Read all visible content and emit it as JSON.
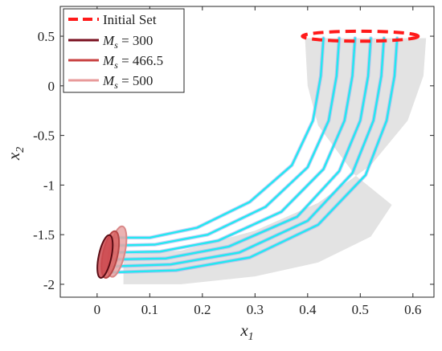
{
  "chart_data": {
    "type": "line",
    "xlabel": "x1",
    "ylabel": "x2",
    "xlim": [
      -0.07,
      0.64
    ],
    "ylim": [
      -2.13,
      0.8
    ],
    "x_ticks": [
      0,
      0.1,
      0.2,
      0.3,
      0.4,
      0.5,
      0.6
    ],
    "y_ticks": [
      0.5,
      0,
      -0.5,
      -1,
      -1.5,
      -2
    ],
    "x_tick_labels": [
      "0",
      "0.1",
      "0.2",
      "0.3",
      "0.4",
      "0.5",
      "0.6"
    ],
    "y_tick_labels": [
      "0.5",
      "0",
      "-0.5",
      "-1",
      "-1.5",
      "-2"
    ],
    "grid": false,
    "legend_position": "top-left",
    "legend": [
      {
        "label": "Initial Set",
        "color": "#ff1a1a",
        "style": "dashed"
      },
      {
        "label": "M_s = 300",
        "color": "#7a1020",
        "style": "solid"
      },
      {
        "label": "M_s = 466.5",
        "color": "#c84040",
        "style": "solid"
      },
      {
        "label": "M_s = 500",
        "color": "#e89a9a",
        "style": "solid"
      }
    ],
    "initial_set": {
      "center": [
        0.5,
        0.5
      ],
      "semi_axes": [
        0.11,
        0.05
      ],
      "color": "#ff1a1a"
    },
    "reach_tube": {
      "color": "#e3e3e3",
      "outer_edge": [
        [
          0.625,
          0.48
        ],
        [
          0.62,
          0.1
        ],
        [
          0.59,
          -0.35
        ],
        [
          0.52,
          -0.8
        ],
        [
          0.42,
          -1.18
        ],
        [
          0.3,
          -1.46
        ],
        [
          0.16,
          -1.66
        ],
        [
          0.05,
          -1.7
        ]
      ],
      "inner_edge": [
        [
          0.05,
          -2.0
        ],
        [
          0.16,
          -2.0
        ],
        [
          0.3,
          -1.92
        ],
        [
          0.42,
          -1.78
        ],
        [
          0.52,
          -1.52
        ],
        [
          0.56,
          -1.2
        ],
        [
          0.49,
          -0.9
        ],
        [
          0.42,
          -0.4
        ],
        [
          0.4,
          0.0
        ],
        [
          0.395,
          0.48
        ]
      ]
    },
    "trajectory_color": "#22e8f0",
    "trajectory_shadow_color": "#9aa8f2",
    "trajectories": [
      {
        "x": [
          0.43,
          0.425,
          0.41,
          0.37,
          0.29,
          0.19,
          0.1,
          0.03
        ],
        "y": [
          0.48,
          0.1,
          -0.35,
          -0.8,
          -1.17,
          -1.43,
          -1.53,
          -1.53
        ]
      },
      {
        "x": [
          0.46,
          0.455,
          0.44,
          0.4,
          0.32,
          0.21,
          0.11,
          0.03
        ],
        "y": [
          0.48,
          0.1,
          -0.35,
          -0.82,
          -1.22,
          -1.5,
          -1.6,
          -1.61
        ]
      },
      {
        "x": [
          0.49,
          0.485,
          0.47,
          0.43,
          0.35,
          0.23,
          0.12,
          0.03
        ],
        "y": [
          0.48,
          0.1,
          -0.35,
          -0.84,
          -1.27,
          -1.56,
          -1.67,
          -1.68
        ]
      },
      {
        "x": [
          0.52,
          0.515,
          0.5,
          0.46,
          0.38,
          0.25,
          0.13,
          0.03
        ],
        "y": [
          0.48,
          0.1,
          -0.35,
          -0.86,
          -1.32,
          -1.62,
          -1.74,
          -1.75
        ]
      },
      {
        "x": [
          0.545,
          0.54,
          0.525,
          0.485,
          0.4,
          0.27,
          0.14,
          0.03
        ],
        "y": [
          0.48,
          0.1,
          -0.35,
          -0.88,
          -1.36,
          -1.68,
          -1.8,
          -1.82
        ]
      },
      {
        "x": [
          0.57,
          0.565,
          0.55,
          0.51,
          0.42,
          0.29,
          0.15,
          0.03
        ],
        "y": [
          0.48,
          0.1,
          -0.35,
          -0.9,
          -1.4,
          -1.73,
          -1.86,
          -1.88
        ]
      }
    ],
    "final_sets": [
      {
        "label": "M_s = 500",
        "center": [
          0.038,
          -1.67
        ],
        "semi_axes": [
          0.015,
          0.26
        ],
        "fill": "#e8a4a4",
        "stroke": "#d98888"
      },
      {
        "label": "M_s = 466.5",
        "center": [
          0.025,
          -1.7
        ],
        "semi_axes": [
          0.014,
          0.24
        ],
        "fill": "#d86060",
        "stroke": "#b84848"
      },
      {
        "label": "M_s = 300",
        "center": [
          0.015,
          -1.72
        ],
        "semi_axes": [
          0.012,
          0.22
        ],
        "fill": "#cc4a50",
        "stroke": "#5a0c14"
      }
    ]
  }
}
